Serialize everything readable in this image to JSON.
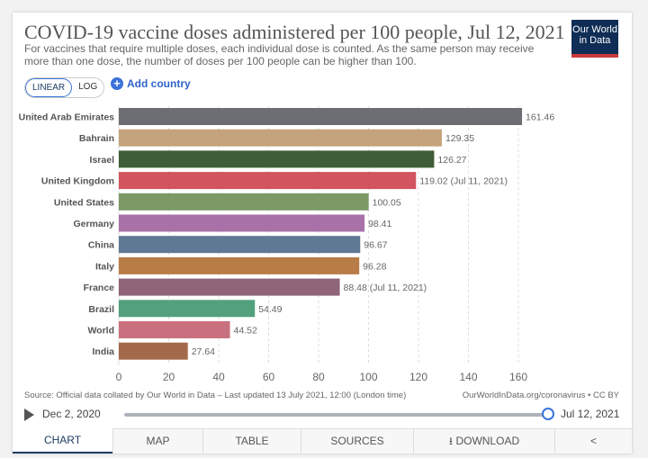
{
  "title": "COVID-19 vaccine doses administered per 100 people, Jul 12, 2021",
  "subtitle": "For vaccines that require multiple doses, each individual dose is counted. As the same person may receive more than one dose, the number of doses per 100 people can be higher than 100.",
  "logo": "Our World in Data",
  "controls": {
    "linear": "LINEAR",
    "log": "LOG",
    "add_country": "Add country"
  },
  "source": "Source: Official data collated by Our World in Data – Last updated 13 July 2021, 12:00 (London time)",
  "credit": "OurWorldInData.org/coronavirus • CC BY",
  "timeline": {
    "start": "Dec 2, 2020",
    "end": "Jul 12, 2021",
    "position": 1.0
  },
  "tabs": [
    "CHART",
    "MAP",
    "TABLE",
    "SOURCES",
    "DOWNLOAD"
  ],
  "chart_data": {
    "type": "bar",
    "orientation": "horizontal",
    "xlim": [
      0,
      160
    ],
    "grid": true,
    "ticks": [
      0,
      20,
      40,
      60,
      80,
      100,
      120,
      140,
      160
    ],
    "categories": [
      "United Arab Emirates",
      "Bahrain",
      "Israel",
      "United Kingdom",
      "United States",
      "Germany",
      "China",
      "Italy",
      "France",
      "Brazil",
      "World",
      "India"
    ],
    "values": [
      161.46,
      129.35,
      126.27,
      119.02,
      100.05,
      98.41,
      96.67,
      96.28,
      88.48,
      54.49,
      44.52,
      27.64
    ],
    "labels": [
      "161.46",
      "129.35",
      "126.27",
      "119.02 (Jul 11, 2021)",
      "100.05",
      "98.41",
      "96.67",
      "96.28",
      "88.48 (Jul 11, 2021)",
      "54.49",
      "44.52",
      "27.64"
    ],
    "colors": [
      "#6d6e74",
      "#c4a47c",
      "#3f5d36",
      "#d2545f",
      "#7b9a66",
      "#a872a8",
      "#5f7893",
      "#b87c46",
      "#8f6378",
      "#52a07c",
      "#c9707e",
      "#a4694a"
    ]
  }
}
